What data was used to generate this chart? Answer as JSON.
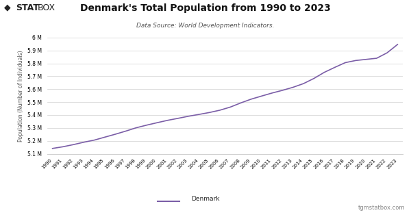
{
  "title": "Denmark's Total Population from 1990 to 2023",
  "subtitle": "Data Source: World Development Indicators.",
  "ylabel": "Population (Number of Individuals)",
  "legend_label": "Denmark",
  "watermark": "tgmstatbox.com",
  "line_color": "#7B5EA7",
  "background_color": "#ffffff",
  "grid_color": "#d0d0d0",
  "ylim": [
    5100000,
    6000000
  ],
  "ytick_step": 100000,
  "years": [
    1990,
    1991,
    1992,
    1993,
    1994,
    1995,
    1996,
    1997,
    1998,
    1999,
    2000,
    2001,
    2002,
    2003,
    2004,
    2005,
    2006,
    2007,
    2008,
    2009,
    2010,
    2011,
    2012,
    2013,
    2014,
    2015,
    2016,
    2017,
    2018,
    2019,
    2020,
    2021,
    2022,
    2023
  ],
  "population": [
    5140939,
    5154029,
    5170690,
    5189333,
    5205688,
    5228410,
    5251027,
    5275121,
    5301090,
    5321534,
    5340394,
    5358785,
    5374255,
    5390574,
    5404522,
    5419432,
    5437272,
    5461438,
    5493621,
    5523095,
    5547088,
    5570572,
    5591572,
    5614932,
    5643475,
    5683483,
    5731118,
    5769603,
    5806081,
    5822763,
    5831404,
    5840045,
    5882261,
    5946984
  ]
}
